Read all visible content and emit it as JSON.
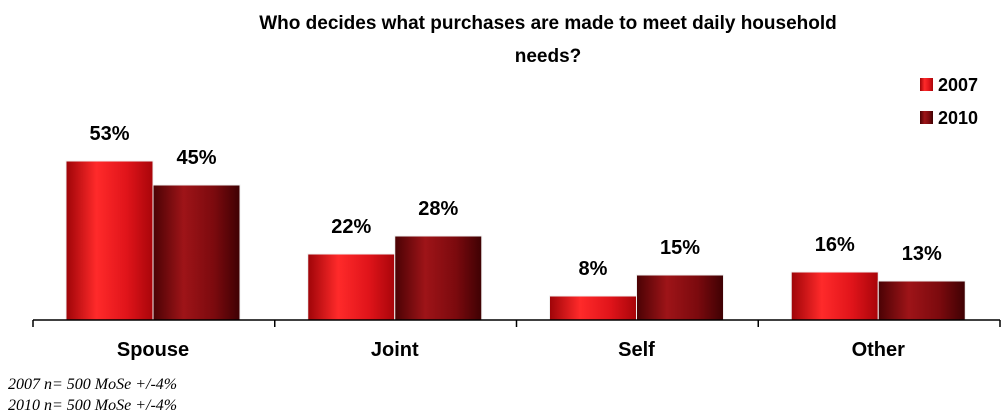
{
  "chart_data": {
    "type": "bar",
    "title_lines": [
      "Who decides what purchases are made to meet daily household",
      "needs?"
    ],
    "categories": [
      "Spouse",
      "Joint",
      "Self",
      "Other"
    ],
    "series": [
      {
        "name": "2007",
        "values": [
          53,
          22,
          8,
          16
        ],
        "labels": [
          "53%",
          "22%",
          "8%",
          "16%"
        ],
        "color": "#e8141a"
      },
      {
        "name": "2010",
        "values": [
          45,
          28,
          15,
          13
        ],
        "labels": [
          "45%",
          "28%",
          "15%",
          "13%"
        ],
        "color": "#8c0a0e"
      }
    ],
    "legend_position": "top-right",
    "grid": false
  },
  "footnotes": [
    "2007 n= 500 MoSe +/-4%",
    "2010 n= 500 MoSe +/-4%"
  ]
}
